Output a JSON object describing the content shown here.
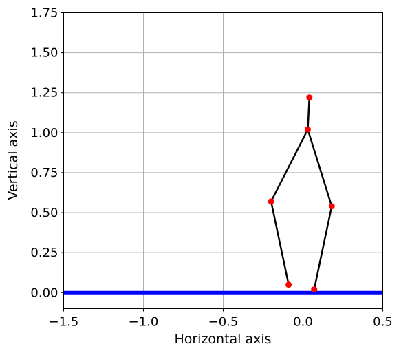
{
  "chart_data": {
    "type": "line",
    "title": "",
    "xlabel": "Horizontal axis",
    "ylabel": "Vertical axis",
    "xlim": [
      -1.5,
      0.5
    ],
    "ylim": [
      -0.1,
      1.75
    ],
    "grid": true,
    "x_ticks": [
      -1.5,
      -1.0,
      -0.5,
      0.0,
      0.5
    ],
    "x_tick_labels": [
      "−1.5",
      "−1.0",
      "−0.5",
      "0.0",
      "0.5"
    ],
    "y_ticks": [
      0.0,
      0.25,
      0.5,
      0.75,
      1.0,
      1.25,
      1.5,
      1.75
    ],
    "y_tick_labels": [
      "0.00",
      "0.25",
      "0.50",
      "0.75",
      "1.00",
      "1.25",
      "1.50",
      "1.75"
    ],
    "ground": {
      "y": 0.0,
      "color": "#0000ff"
    },
    "link_color": "#000000",
    "joint_color": "#ff0000",
    "joints": [
      {
        "name": "head",
        "x": 0.04,
        "y": 1.22
      },
      {
        "name": "hip",
        "x": 0.03,
        "y": 1.02
      },
      {
        "name": "left-knee",
        "x": -0.2,
        "y": 0.57
      },
      {
        "name": "left-foot",
        "x": -0.09,
        "y": 0.05
      },
      {
        "name": "right-knee",
        "x": 0.18,
        "y": 0.54
      },
      {
        "name": "right-foot",
        "x": 0.07,
        "y": 0.02
      }
    ],
    "links": [
      [
        0,
        1
      ],
      [
        1,
        2
      ],
      [
        2,
        3
      ],
      [
        1,
        4
      ],
      [
        4,
        5
      ]
    ]
  }
}
